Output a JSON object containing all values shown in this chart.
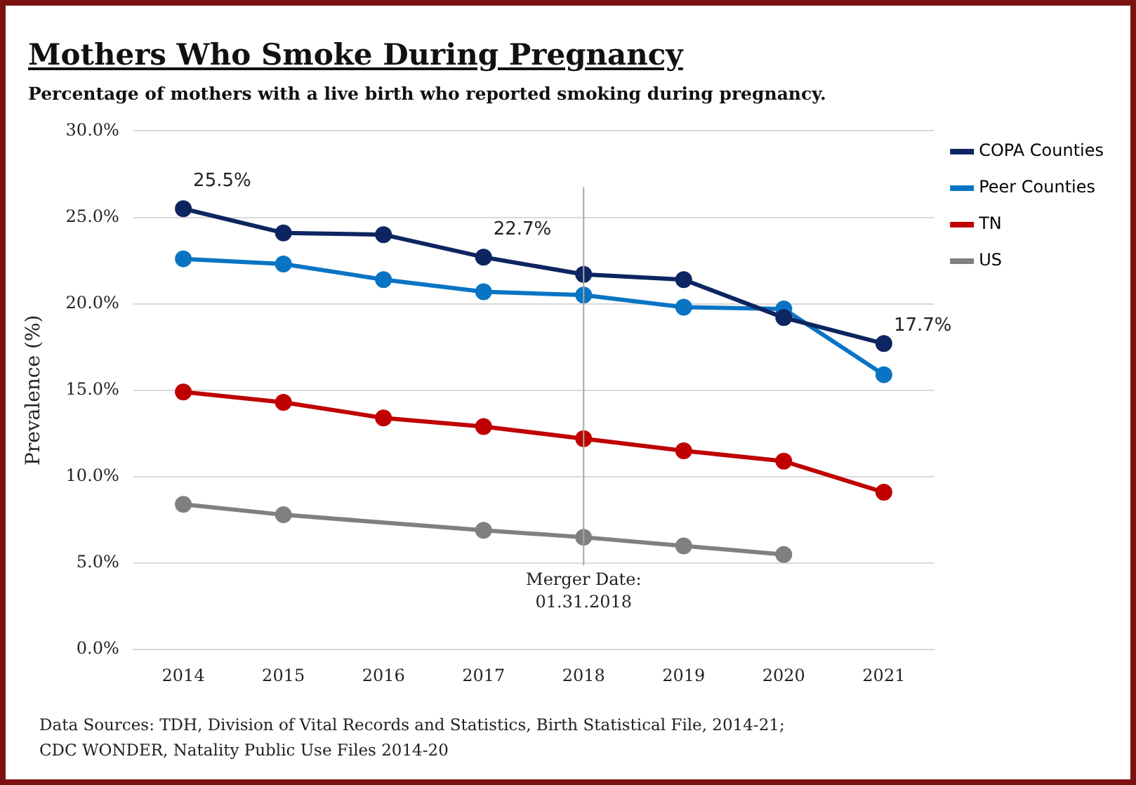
{
  "chart_data": {
    "type": "line",
    "title": "Mothers Who Smoke During Pregnancy",
    "subtitle": "Percentage of mothers with a live birth who reported smoking during pregnancy.",
    "ylabel": "Prevalence (%)",
    "categories": [
      "2014",
      "2015",
      "2016",
      "2017",
      "2018",
      "2019",
      "2020",
      "2021"
    ],
    "series": [
      {
        "name": "COPA Counties",
        "color": "#0d2560",
        "values": [
          25.5,
          24.1,
          24.0,
          22.7,
          21.7,
          21.4,
          19.2,
          17.7
        ],
        "value_labels": [
          "25.5%",
          null,
          null,
          "22.7%",
          null,
          null,
          null,
          "17.7%"
        ]
      },
      {
        "name": "Peer Counties",
        "color": "#0a74c4",
        "values": [
          22.6,
          22.3,
          21.4,
          20.7,
          20.5,
          19.8,
          19.7,
          15.9
        ]
      },
      {
        "name": "TN",
        "color": "#c00000",
        "values": [
          14.9,
          14.3,
          13.4,
          12.9,
          12.2,
          11.5,
          10.9,
          9.1
        ]
      },
      {
        "name": "US",
        "color": "#808080",
        "values": [
          8.4,
          7.8,
          null,
          6.9,
          6.5,
          6.0,
          5.5,
          null
        ]
      }
    ],
    "ylim": [
      0,
      30
    ],
    "yticks": [
      {
        "value": 0,
        "label": "0.0%"
      },
      {
        "value": 5,
        "label": "5.0%"
      },
      {
        "value": 10,
        "label": "10.0%"
      },
      {
        "value": 15,
        "label": "15.0%"
      },
      {
        "value": 20,
        "label": "20.0%"
      },
      {
        "value": 25,
        "label": "25.0%"
      },
      {
        "value": 30,
        "label": "30.0%"
      }
    ],
    "grid": "y",
    "legend": "top right",
    "marker": "circle",
    "line_style": "solid",
    "ref_lines": [
      {
        "axis": "x",
        "value": "2018",
        "label": "Merger Date:\n01.31.2018",
        "color": "#a6a6a6"
      }
    ],
    "annotations": [
      "Data Sources: TDH, Division of Vital Records and Statistics, Birth Statistical File, 2014-21;\nCDC WONDER, Natality Public Use Files 2014-20"
    ]
  }
}
